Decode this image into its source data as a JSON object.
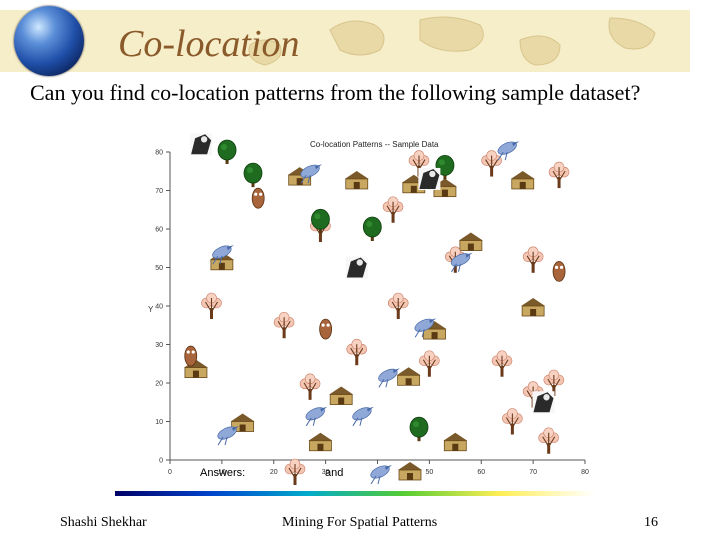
{
  "slide": {
    "title": "Co-location",
    "question": "Can you find co-location patterns from the following sample dataset?"
  },
  "chart_data": {
    "type": "scatter",
    "title": "Co-location Patterns -- Sample Data",
    "ylabel": "Y",
    "xlim": [
      0,
      80
    ],
    "ylim": [
      0,
      80
    ],
    "xticks": [
      0,
      10,
      20,
      30,
      40,
      50,
      60,
      70,
      80
    ],
    "yticks": [
      0,
      10,
      20,
      30,
      40,
      50,
      60,
      70,
      80
    ],
    "series": [
      {
        "icon": "house",
        "points": [
          [
            25,
            74
          ],
          [
            36,
            73
          ],
          [
            68,
            73
          ],
          [
            47,
            72
          ],
          [
            53,
            71
          ],
          [
            10,
            52
          ],
          [
            58,
            57
          ],
          [
            51,
            34
          ],
          [
            70,
            40
          ],
          [
            5,
            24
          ],
          [
            46,
            22
          ],
          [
            33,
            17
          ],
          [
            14,
            10
          ],
          [
            55,
            5
          ],
          [
            29,
            5
          ]
        ]
      },
      {
        "icon": "deciduous-tree",
        "points": [
          [
            48,
            77
          ],
          [
            62,
            77
          ],
          [
            75,
            74
          ],
          [
            43,
            65
          ],
          [
            29,
            60
          ],
          [
            55,
            52
          ],
          [
            70,
            52
          ],
          [
            8,
            40
          ],
          [
            44,
            40
          ],
          [
            22,
            35
          ],
          [
            36,
            28
          ],
          [
            50,
            25
          ],
          [
            64,
            25
          ],
          [
            70,
            17
          ],
          [
            74,
            20
          ],
          [
            66,
            10
          ],
          [
            73,
            5
          ],
          [
            27,
            19
          ]
        ]
      },
      {
        "icon": "evergreen-tree",
        "points": [
          [
            11,
            80
          ],
          [
            53,
            76
          ],
          [
            16,
            74
          ],
          [
            29,
            62
          ],
          [
            39,
            60
          ],
          [
            48,
            8
          ]
        ]
      },
      {
        "icon": "bird",
        "points": [
          [
            65,
            81
          ],
          [
            27,
            75
          ],
          [
            10,
            54
          ],
          [
            56,
            52
          ],
          [
            49,
            35
          ],
          [
            42,
            22
          ],
          [
            28,
            12
          ],
          [
            37,
            12
          ],
          [
            11,
            7
          ]
        ]
      },
      {
        "icon": "owl",
        "points": [
          [
            17,
            68
          ],
          [
            30,
            34
          ],
          [
            75,
            49
          ],
          [
            4,
            27
          ]
        ]
      },
      {
        "icon": "raptor",
        "points": [
          [
            6,
            82
          ],
          [
            50,
            73
          ],
          [
            36,
            50
          ],
          [
            72,
            15
          ]
        ]
      }
    ]
  },
  "answers": {
    "label": "Answers:",
    "connector": "and"
  },
  "footer": {
    "author": "Shashi Shekhar",
    "course": "Mining For Spatial Patterns",
    "page": "16"
  }
}
